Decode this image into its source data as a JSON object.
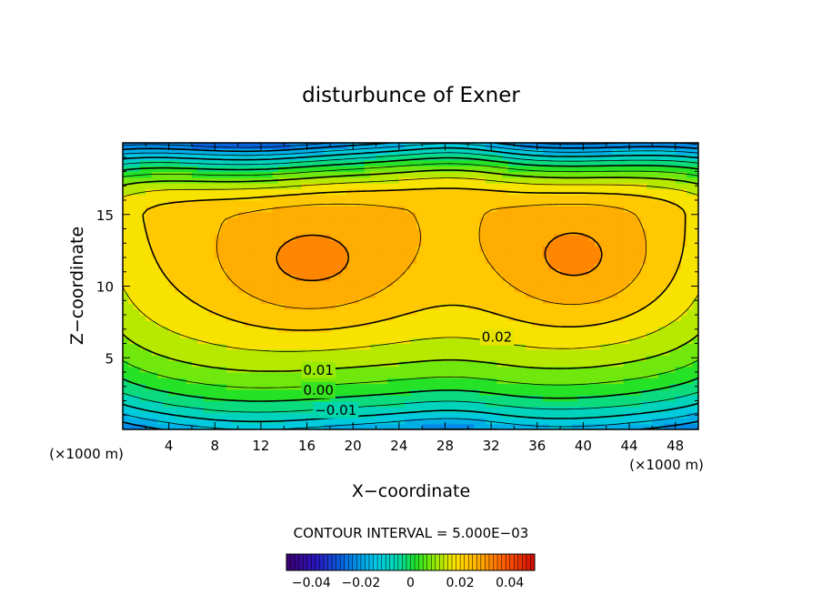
{
  "chart_data": {
    "type": "heatmap",
    "title": "disturbunce of Exner",
    "xlabel": "X−coordinate",
    "ylabel": "Z−coordinate",
    "x_unit": "(×1000 m)",
    "z_unit": "(×1000 m)",
    "xlim": [
      0,
      50
    ],
    "ylim": [
      0,
      20
    ],
    "x_ticks": [
      4,
      8,
      12,
      16,
      20,
      24,
      28,
      32,
      36,
      40,
      44,
      48
    ],
    "y_ticks": [
      5,
      10,
      15
    ],
    "contour_interval_text": "CONTOUR INTERVAL = 5.000E−03",
    "contour_interval": 0.005,
    "contour_labels": [
      {
        "text": "0.02",
        "x": 32.5,
        "z": 6.5
      },
      {
        "text": "0.01",
        "x": 17.0,
        "z": 4.2
      },
      {
        "text": "0.00",
        "x": 17.0,
        "z": 2.8
      },
      {
        "text": "−0.01",
        "x": 18.5,
        "z": 1.4
      }
    ],
    "field_description": {
      "min_bottom": -0.02,
      "max_cores": 0.036,
      "core_centers": [
        [
          16.5,
          11.3
        ],
        [
          39.5,
          11.6
        ]
      ]
    },
    "colorbar": {
      "range": [
        -0.05,
        0.05
      ],
      "tick_values": [
        -0.04,
        -0.02,
        0,
        0.02,
        0.04
      ],
      "tick_labels": [
        "−0.04",
        "−0.02",
        "0",
        "0.02",
        "0.04"
      ]
    },
    "grid": false,
    "legend": "colorbar-bottom"
  }
}
